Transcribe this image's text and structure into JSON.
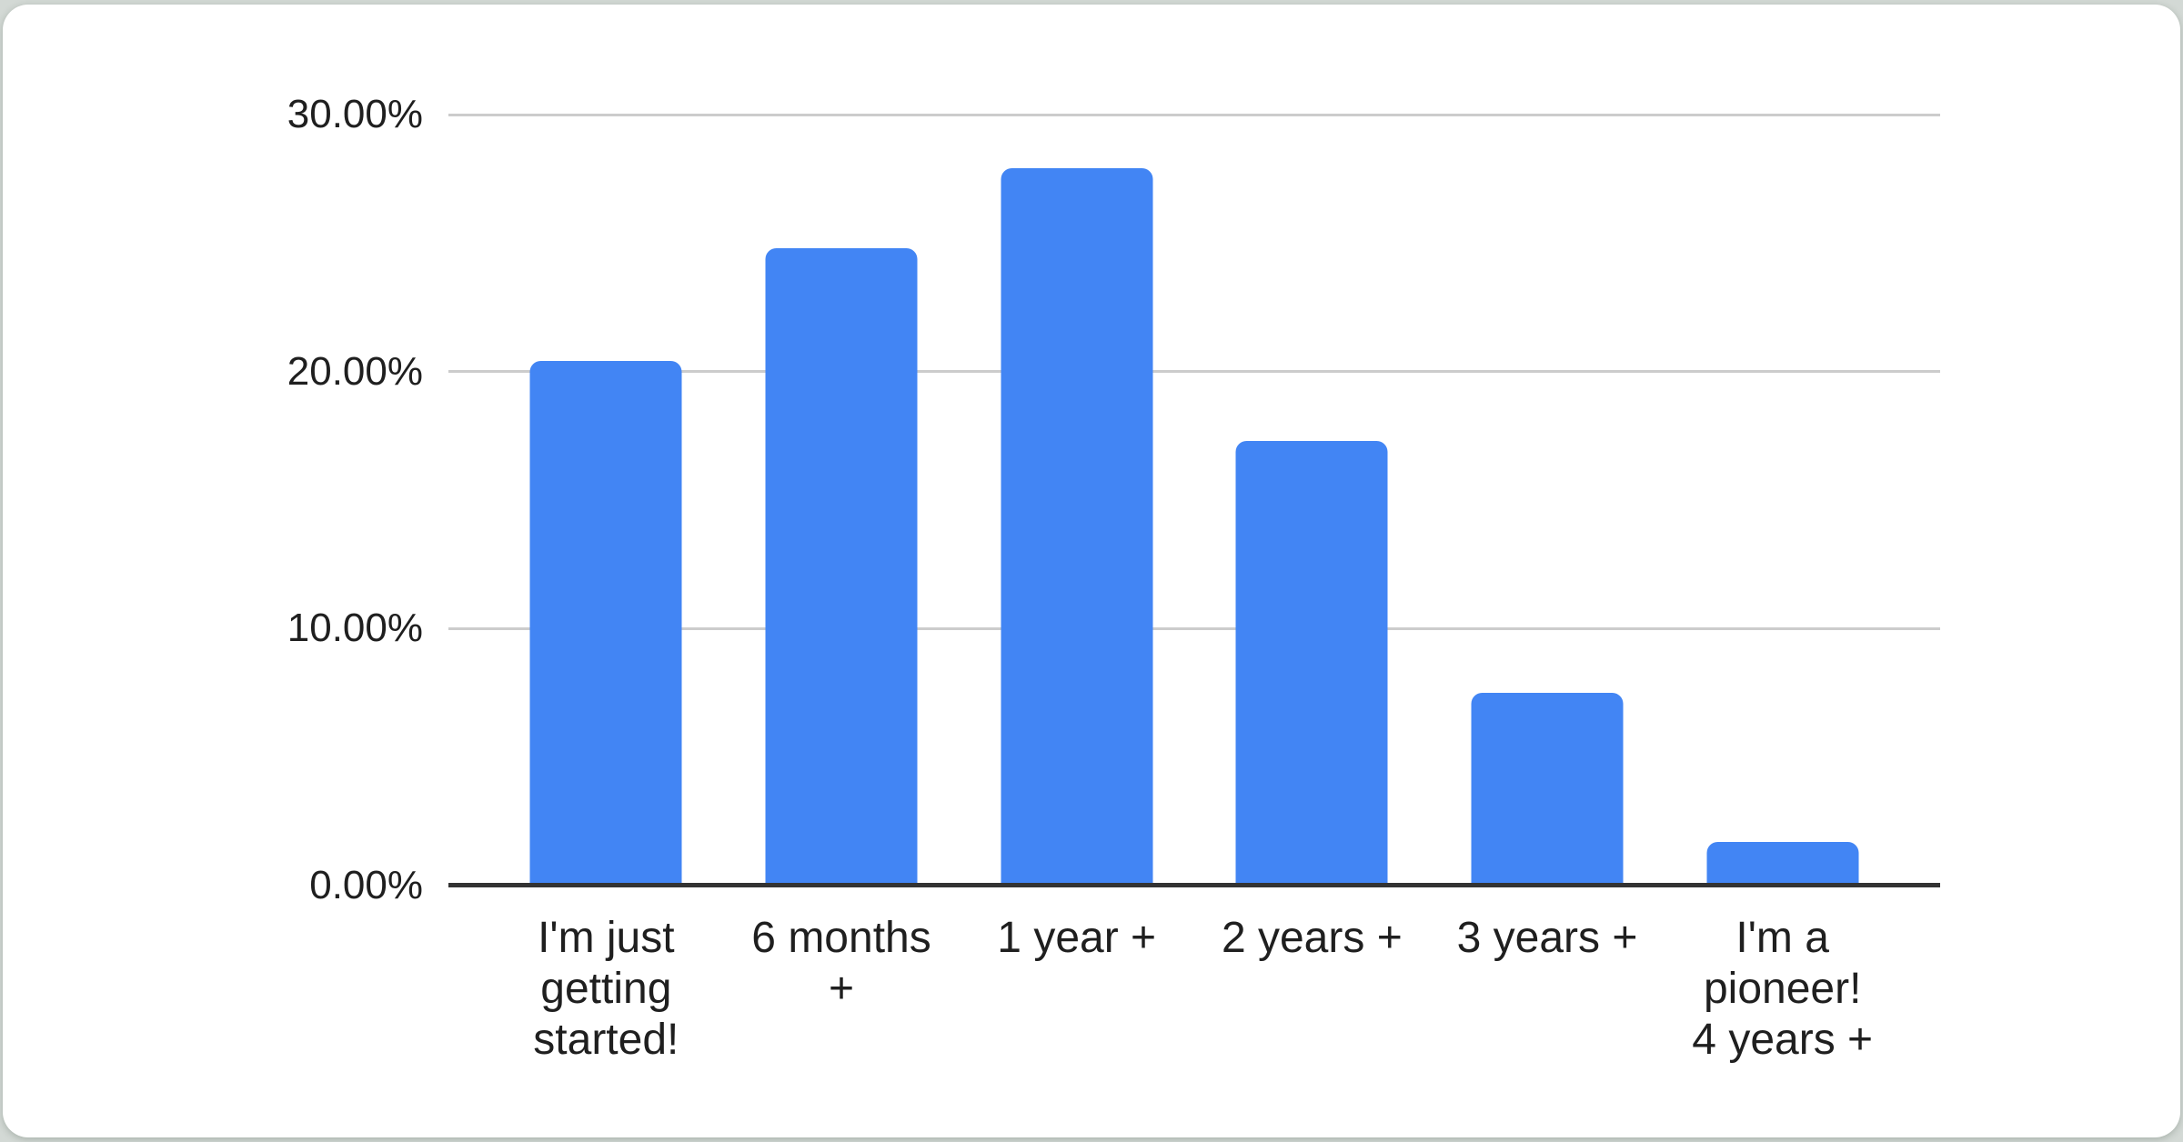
{
  "colors": {
    "bar": "#4285f4",
    "gridline": "#cccccc",
    "axis_line": "#333333",
    "label_text": "#1f1f1f",
    "card_background": "#ffffff",
    "page_background": "#d3d9d5"
  },
  "chart_data": {
    "type": "bar",
    "title": "",
    "xlabel": "",
    "ylabel": "",
    "categories": [
      "I'm just getting started!",
      "6 months +",
      "1 year +",
      "2 years +",
      "3 years +",
      "I'm a pioneer! 4 years +"
    ],
    "category_lines": [
      [
        "I'm just",
        "getting",
        "started!"
      ],
      [
        "6 months",
        "+"
      ],
      [
        "1 year +"
      ],
      [
        "2 years +"
      ],
      [
        "3 years +"
      ],
      [
        "I'm a",
        "pioneer!",
        "4 years +"
      ]
    ],
    "values": [
      20.4,
      24.8,
      27.9,
      17.3,
      7.5,
      1.7
    ],
    "value_unit": "%",
    "ylim": [
      0,
      30
    ],
    "ytick_values": [
      0,
      10,
      20,
      30
    ],
    "ytick_labels": [
      "0.00%",
      "10.00%",
      "20.00%",
      "30.00%"
    ],
    "grid": true,
    "legend": "none"
  }
}
